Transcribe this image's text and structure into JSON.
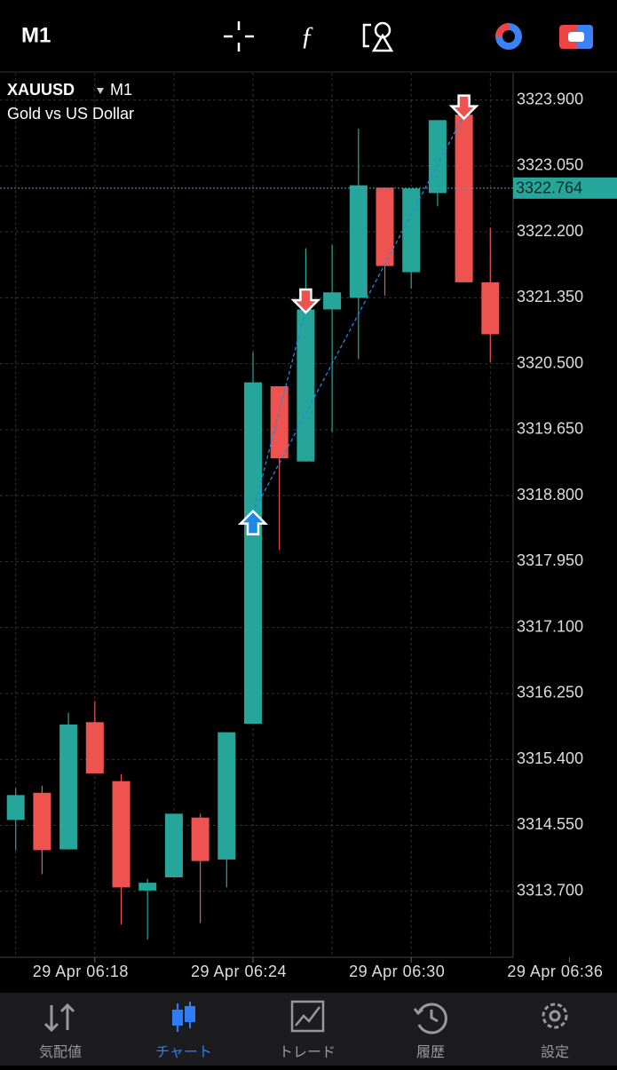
{
  "header": {
    "timeframe": "M1"
  },
  "chart_data": {
    "type": "candlestick",
    "symbol": "XAUUSD",
    "timeframe": "M1",
    "description": "Gold vs US Dollar",
    "categories": [
      null,
      null,
      null,
      "29 Apr 06:18",
      null,
      null,
      null,
      null,
      null,
      "29 Apr 06:24",
      null,
      null,
      null,
      null,
      null,
      "29 Apr 06:30",
      null,
      null,
      null,
      null,
      null,
      "29 Apr 06:36"
    ],
    "open": [
      3314.62,
      3314.97,
      3314.24,
      3315.88,
      3315.12,
      3313.71,
      3313.88,
      3314.65,
      3314.11,
      3315.86,
      3320.21,
      3319.24,
      3321.2,
      3321.35,
      3322.77,
      3321.68,
      3322.7,
      3323.71,
      3321.55,
      null,
      null,
      null
    ],
    "high": [
      3315.03,
      3315.06,
      3316.0,
      3316.15,
      3315.21,
      3313.86,
      3314.7,
      3314.7,
      3315.75,
      3320.65,
      3320.21,
      3321.99,
      3322.03,
      3323.53,
      3322.77,
      3322.76,
      3323.64,
      3323.8,
      3322.25,
      null,
      null,
      null
    ],
    "low": [
      3314.23,
      3313.92,
      3314.24,
      3315.22,
      3313.27,
      3313.08,
      3313.88,
      3313.29,
      3313.75,
      3315.86,
      3318.1,
      3319.24,
      3319.62,
      3320.56,
      3321.38,
      3321.47,
      3322.53,
      3321.55,
      3320.52,
      null,
      null,
      null
    ],
    "close": [
      3314.94,
      3314.23,
      3315.85,
      3315.22,
      3313.75,
      3313.81,
      3314.7,
      3314.09,
      3315.75,
      3320.26,
      3319.28,
      3321.2,
      3321.42,
      3322.8,
      3321.76,
      3322.76,
      3323.64,
      3321.55,
      3320.88,
      null,
      null,
      null
    ],
    "buy_marks": [
      null,
      null,
      null,
      null,
      null,
      null,
      null,
      null,
      null,
      3318.44,
      null,
      null,
      null,
      null,
      null,
      null,
      null,
      null,
      null,
      null,
      null,
      null
    ],
    "sell_marks": [
      null,
      null,
      null,
      null,
      null,
      null,
      null,
      null,
      null,
      null,
      null,
      3321.32,
      null,
      null,
      null,
      null,
      null,
      3323.82,
      null,
      null,
      null,
      null
    ],
    "up_color": "#26a69a",
    "down_color": "#ef5350",
    "buy_color": "#1e88e5",
    "current_price": 3322.764,
    "ylim": [
      3312.85,
      3324.25
    ],
    "yticks": [
      {
        "value": 3323.9,
        "label": "3323.900"
      },
      {
        "value": 3323.05,
        "label": "3323.050"
      },
      {
        "value": 3322.2,
        "label": "3322.200"
      },
      {
        "value": 3321.35,
        "label": "3321.350"
      },
      {
        "value": 3320.5,
        "label": "3320.500"
      },
      {
        "value": 3319.65,
        "label": "3319.650"
      },
      {
        "value": 3318.8,
        "label": "3318.800"
      },
      {
        "value": 3317.95,
        "label": "3317.950"
      },
      {
        "value": 3317.1,
        "label": "3317.100"
      },
      {
        "value": 3316.25,
        "label": "3316.250"
      },
      {
        "value": 3315.4,
        "label": "3315.400"
      },
      {
        "value": 3314.55,
        "label": "3314.550"
      },
      {
        "value": 3313.7,
        "label": "3313.700"
      }
    ],
    "grid": true
  },
  "nav": {
    "items": [
      "気配値",
      "チャート",
      "トレード",
      "履歴",
      "設定"
    ]
  }
}
